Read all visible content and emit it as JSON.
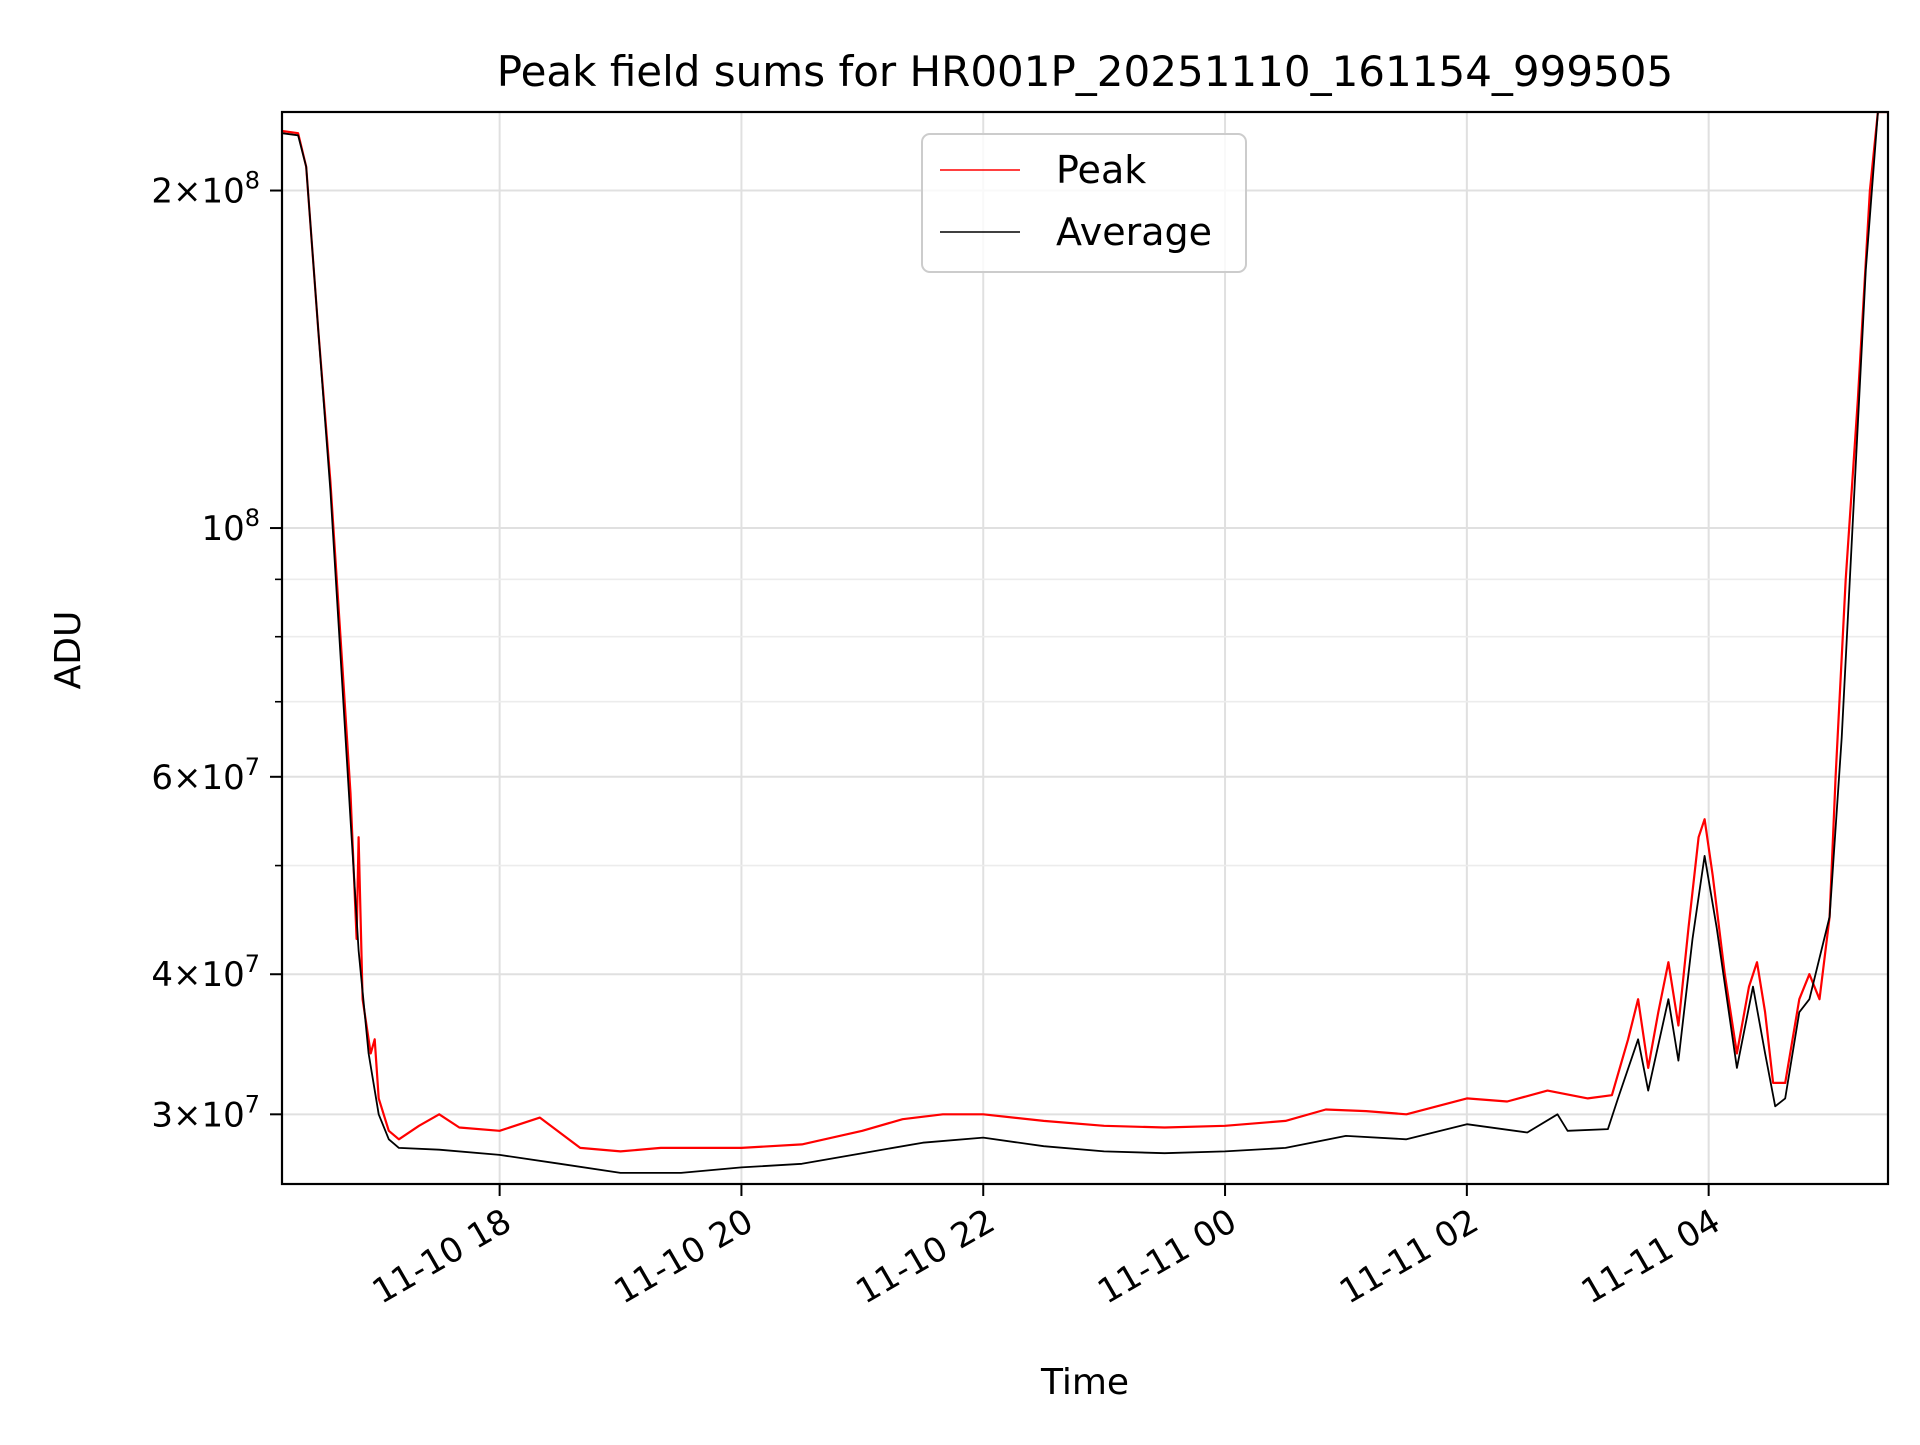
{
  "chart_data": {
    "type": "line",
    "title": "Peak field sums for HR001P_20251110_161154_999505",
    "xlabel": "Time",
    "ylabel": "ADU",
    "y_scale": "log",
    "x_range": [
      "2025-11-10 16:12",
      "2025-11-11 05:29"
    ],
    "ylim": [
      26000000,
      235000000
    ],
    "grid": true,
    "legend_placement": "upper center",
    "x_ticks": [
      {
        "t": "2025-11-10 18:00",
        "label": "11-10 18"
      },
      {
        "t": "2025-11-10 20:00",
        "label": "11-10 20"
      },
      {
        "t": "2025-11-10 22:00",
        "label": "11-10 22"
      },
      {
        "t": "2025-11-11 00:00",
        "label": "11-11 00"
      },
      {
        "t": "2025-11-11 02:00",
        "label": "11-11 02"
      },
      {
        "t": "2025-11-11 04:00",
        "label": "11-11 04"
      }
    ],
    "y_major_ticks": [
      {
        "v": 30000000,
        "mant": "3",
        "exp": "7"
      },
      {
        "v": 40000000,
        "mant": "4",
        "exp": "7"
      },
      {
        "v": 60000000,
        "mant": "6",
        "exp": "7"
      },
      {
        "v": 100000000,
        "mant": "",
        "exp": "8"
      },
      {
        "v": 200000000,
        "mant": "2",
        "exp": "8"
      }
    ],
    "y_minor_ticks": [
      50000000,
      70000000,
      80000000,
      90000000
    ],
    "series": [
      {
        "name": "Peak",
        "color": "#ff0000",
        "points": [
          [
            "2025-11-10 16:12",
            226000000
          ],
          [
            "2025-11-10 16:20",
            225000000
          ],
          [
            "2025-11-10 16:24",
            210000000
          ],
          [
            "2025-11-10 16:30",
            150000000
          ],
          [
            "2025-11-10 16:36",
            110000000
          ],
          [
            "2025-11-10 16:42",
            75000000
          ],
          [
            "2025-11-10 16:46",
            58000000
          ],
          [
            "2025-11-10 16:49",
            43000000
          ],
          [
            "2025-11-10 16:50",
            53000000
          ],
          [
            "2025-11-10 16:52",
            38000000
          ],
          [
            "2025-11-10 16:56",
            34000000
          ],
          [
            "2025-11-10 16:58",
            35000000
          ],
          [
            "2025-11-10 17:00",
            31000000
          ],
          [
            "2025-11-10 17:05",
            29000000
          ],
          [
            "2025-11-10 17:10",
            28500000
          ],
          [
            "2025-11-10 17:20",
            29300000
          ],
          [
            "2025-11-10 17:30",
            30000000
          ],
          [
            "2025-11-10 17:40",
            29200000
          ],
          [
            "2025-11-10 18:00",
            29000000
          ],
          [
            "2025-11-10 18:20",
            29800000
          ],
          [
            "2025-11-10 18:40",
            28000000
          ],
          [
            "2025-11-10 19:00",
            27800000
          ],
          [
            "2025-11-10 19:20",
            28000000
          ],
          [
            "2025-11-10 19:40",
            28000000
          ],
          [
            "2025-11-10 20:00",
            28000000
          ],
          [
            "2025-11-10 20:30",
            28200000
          ],
          [
            "2025-11-10 21:00",
            29000000
          ],
          [
            "2025-11-10 21:20",
            29700000
          ],
          [
            "2025-11-10 21:40",
            30000000
          ],
          [
            "2025-11-10 22:00",
            30000000
          ],
          [
            "2025-11-10 22:30",
            29600000
          ],
          [
            "2025-11-10 23:00",
            29300000
          ],
          [
            "2025-11-10 23:30",
            29200000
          ],
          [
            "2025-11-11 00:00",
            29300000
          ],
          [
            "2025-11-11 00:30",
            29600000
          ],
          [
            "2025-11-11 00:50",
            30300000
          ],
          [
            "2025-11-11 01:10",
            30200000
          ],
          [
            "2025-11-11 01:30",
            30000000
          ],
          [
            "2025-11-11 02:00",
            31000000
          ],
          [
            "2025-11-11 02:20",
            30800000
          ],
          [
            "2025-11-11 02:40",
            31500000
          ],
          [
            "2025-11-11 03:00",
            31000000
          ],
          [
            "2025-11-11 03:12",
            31200000
          ],
          [
            "2025-11-11 03:20",
            35000000
          ],
          [
            "2025-11-11 03:25",
            38000000
          ],
          [
            "2025-11-11 03:30",
            33000000
          ],
          [
            "2025-11-11 03:35",
            37000000
          ],
          [
            "2025-11-11 03:40",
            41000000
          ],
          [
            "2025-11-11 03:45",
            36000000
          ],
          [
            "2025-11-11 03:50",
            44000000
          ],
          [
            "2025-11-11 03:55",
            53000000
          ],
          [
            "2025-11-11 03:58",
            55000000
          ],
          [
            "2025-11-11 04:02",
            49000000
          ],
          [
            "2025-11-11 04:08",
            40000000
          ],
          [
            "2025-11-11 04:14",
            34000000
          ],
          [
            "2025-11-11 04:20",
            39000000
          ],
          [
            "2025-11-11 04:24",
            41000000
          ],
          [
            "2025-11-11 04:28",
            37000000
          ],
          [
            "2025-11-11 04:32",
            32000000
          ],
          [
            "2025-11-11 04:38",
            32000000
          ],
          [
            "2025-11-11 04:45",
            38000000
          ],
          [
            "2025-11-11 04:50",
            40000000
          ],
          [
            "2025-11-11 04:55",
            38000000
          ],
          [
            "2025-11-11 05:00",
            45000000
          ],
          [
            "2025-11-11 05:03",
            60000000
          ],
          [
            "2025-11-11 05:08",
            90000000
          ],
          [
            "2025-11-11 05:14",
            130000000
          ],
          [
            "2025-11-11 05:20",
            200000000
          ],
          [
            "2025-11-11 05:24",
            235000000
          ],
          [
            "2025-11-11 05:29",
            235000000
          ]
        ]
      },
      {
        "name": "Average",
        "color": "#000000",
        "points": [
          [
            "2025-11-10 16:12",
            225000000
          ],
          [
            "2025-11-10 16:20",
            224000000
          ],
          [
            "2025-11-10 16:24",
            210000000
          ],
          [
            "2025-11-10 16:30",
            150000000
          ],
          [
            "2025-11-10 16:36",
            108000000
          ],
          [
            "2025-11-10 16:42",
            72000000
          ],
          [
            "2025-11-10 16:46",
            55000000
          ],
          [
            "2025-11-10 16:50",
            42000000
          ],
          [
            "2025-11-10 16:55",
            34000000
          ],
          [
            "2025-11-10 17:00",
            30000000
          ],
          [
            "2025-11-10 17:05",
            28500000
          ],
          [
            "2025-11-10 17:10",
            28000000
          ],
          [
            "2025-11-10 17:30",
            27900000
          ],
          [
            "2025-11-10 18:00",
            27600000
          ],
          [
            "2025-11-10 18:30",
            27100000
          ],
          [
            "2025-11-10 19:00",
            26600000
          ],
          [
            "2025-11-10 19:30",
            26600000
          ],
          [
            "2025-11-10 20:00",
            26900000
          ],
          [
            "2025-11-10 20:30",
            27100000
          ],
          [
            "2025-11-10 21:00",
            27700000
          ],
          [
            "2025-11-10 21:30",
            28300000
          ],
          [
            "2025-11-10 22:00",
            28600000
          ],
          [
            "2025-11-10 22:30",
            28100000
          ],
          [
            "2025-11-10 23:00",
            27800000
          ],
          [
            "2025-11-10 23:30",
            27700000
          ],
          [
            "2025-11-11 00:00",
            27800000
          ],
          [
            "2025-11-11 00:30",
            28000000
          ],
          [
            "2025-11-11 01:00",
            28700000
          ],
          [
            "2025-11-11 01:30",
            28500000
          ],
          [
            "2025-11-11 02:00",
            29400000
          ],
          [
            "2025-11-11 02:30",
            28900000
          ],
          [
            "2025-11-11 02:45",
            30000000
          ],
          [
            "2025-11-11 02:50",
            29000000
          ],
          [
            "2025-11-11 03:10",
            29100000
          ],
          [
            "2025-11-11 03:15",
            31000000
          ],
          [
            "2025-11-11 03:25",
            35000000
          ],
          [
            "2025-11-11 03:30",
            31500000
          ],
          [
            "2025-11-11 03:40",
            38000000
          ],
          [
            "2025-11-11 03:45",
            33500000
          ],
          [
            "2025-11-11 03:52",
            43000000
          ],
          [
            "2025-11-11 03:58",
            51000000
          ],
          [
            "2025-11-11 04:04",
            44000000
          ],
          [
            "2025-11-11 04:14",
            33000000
          ],
          [
            "2025-11-11 04:22",
            39000000
          ],
          [
            "2025-11-11 04:28",
            34000000
          ],
          [
            "2025-11-11 04:33",
            30500000
          ],
          [
            "2025-11-11 04:38",
            31000000
          ],
          [
            "2025-11-11 04:45",
            37000000
          ],
          [
            "2025-11-11 04:50",
            38000000
          ],
          [
            "2025-11-11 05:00",
            45000000
          ],
          [
            "2025-11-11 05:06",
            65000000
          ],
          [
            "2025-11-11 05:12",
            105000000
          ],
          [
            "2025-11-11 05:18",
            170000000
          ],
          [
            "2025-11-11 05:24",
            235000000
          ],
          [
            "2025-11-11 05:29",
            235000000
          ]
        ]
      }
    ]
  }
}
